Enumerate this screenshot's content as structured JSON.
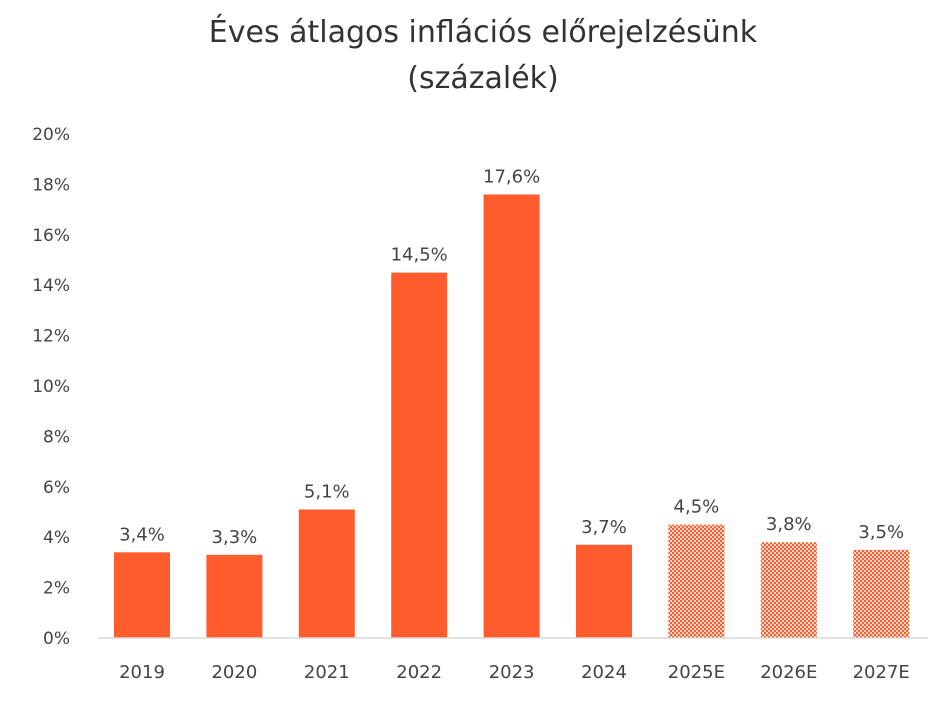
{
  "chart_data": {
    "type": "bar",
    "title": "Éves átlagos inflációs előrejelzésünk",
    "subtitle": "(százalék)",
    "categories": [
      "2019",
      "2020",
      "2021",
      "2022",
      "2023",
      "2024",
      "2025E",
      "2026E",
      "2027E"
    ],
    "values": [
      3.4,
      3.3,
      5.1,
      14.5,
      17.6,
      3.7,
      4.5,
      3.8,
      3.5
    ],
    "data_labels": [
      "3,4%",
      "3,3%",
      "5,1%",
      "14,5%",
      "17,6%",
      "3,7%",
      "4,5%",
      "3,8%",
      "3,5%"
    ],
    "forecast": [
      false,
      false,
      false,
      false,
      false,
      false,
      true,
      true,
      true
    ],
    "ylim": [
      0,
      20
    ],
    "yticks": [
      "0%",
      "2%",
      "4%",
      "6%",
      "8%",
      "10%",
      "12%",
      "14%",
      "16%",
      "18%",
      "20%"
    ],
    "xlabel": "",
    "ylabel": "",
    "grid": false,
    "legend": "none",
    "colors": {
      "bar": "#ff5c2e",
      "forecast_pattern": "#ff7a55",
      "axis": "#d9d9d9"
    }
  }
}
